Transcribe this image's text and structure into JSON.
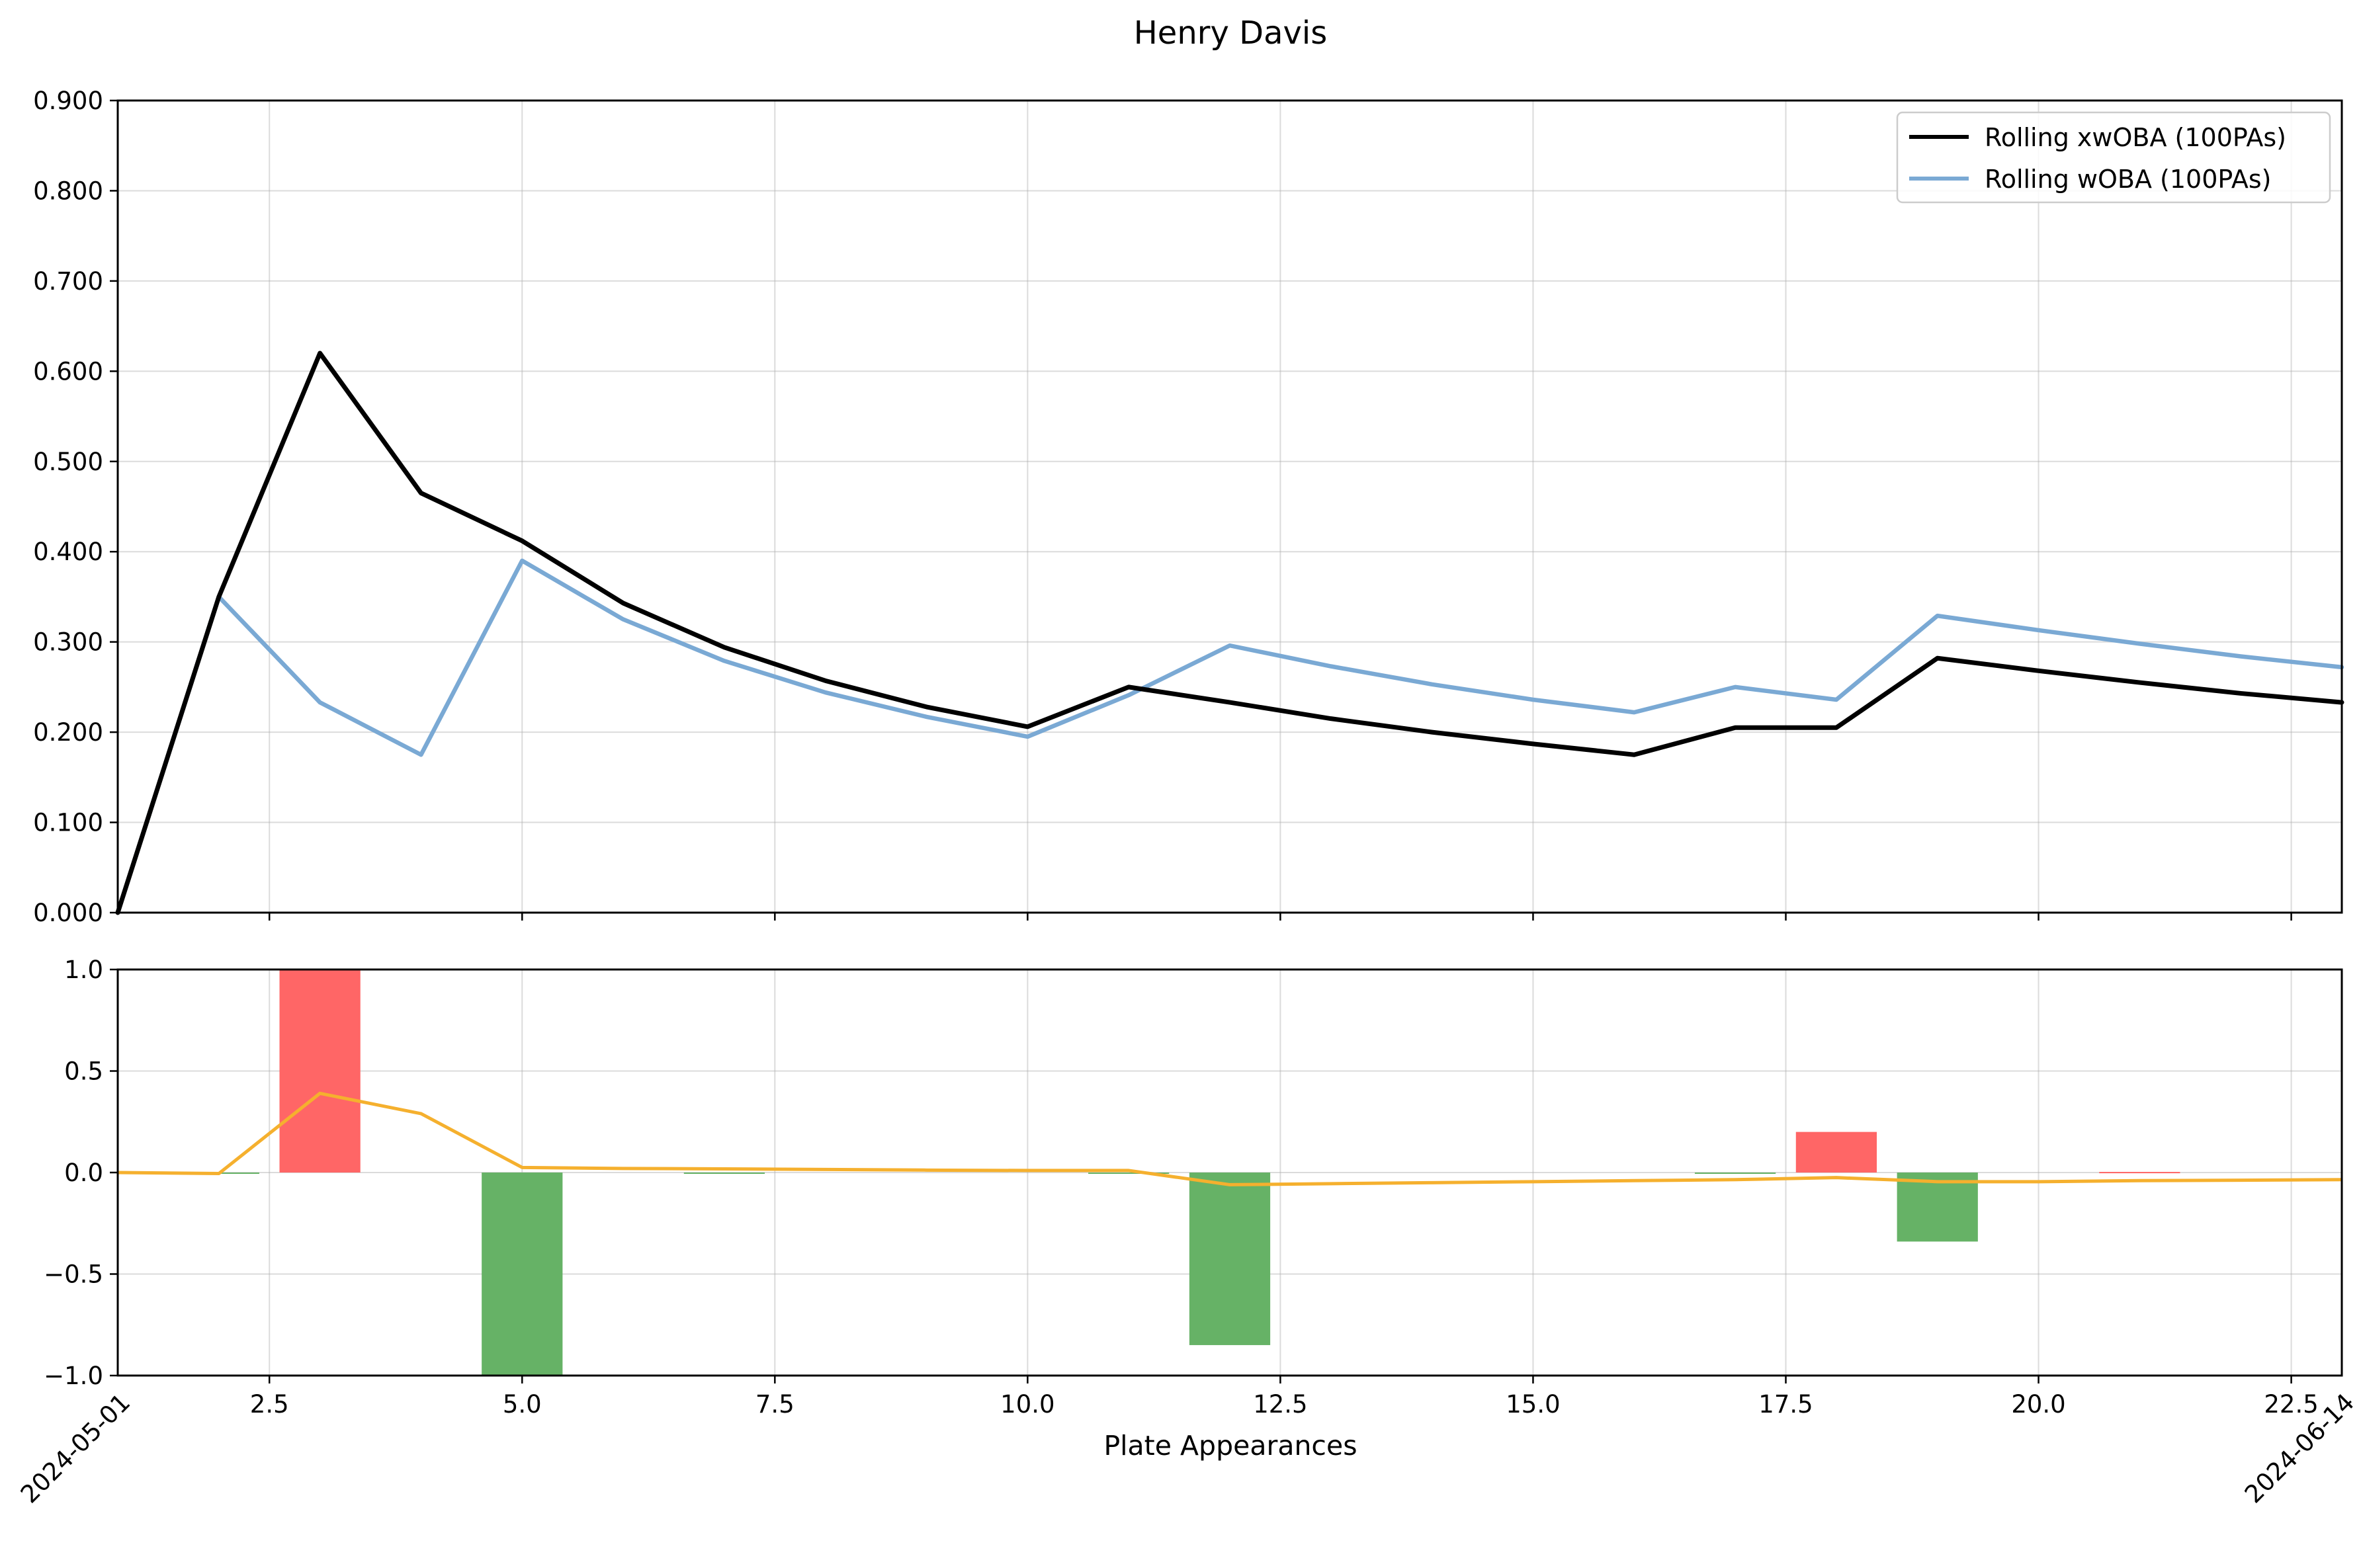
{
  "chart_data": {
    "type": "line",
    "title": "Henry Davis",
    "xlabel": "Plate Appearances",
    "x_ticks": [
      "2.5",
      "5.0",
      "7.5",
      "10.0",
      "12.5",
      "15.0",
      "17.5",
      "20.0",
      "22.5"
    ],
    "x_date_labels": [
      {
        "x": 1,
        "label": "2024-05-01"
      },
      {
        "x": 23,
        "label": "2024-06-14"
      }
    ],
    "xlim": [
      1,
      23
    ],
    "grid": true,
    "legend_position": "top-right",
    "top_panel": {
      "type": "line",
      "ylim": [
        0,
        0.9
      ],
      "y_ticks": [
        "0.000",
        "0.100",
        "0.200",
        "0.300",
        "0.400",
        "0.500",
        "0.600",
        "0.700",
        "0.800",
        "0.900"
      ],
      "x": [
        1,
        2,
        3,
        4,
        5,
        6,
        7,
        8,
        9,
        10,
        11,
        12,
        13,
        14,
        15,
        16,
        17,
        18,
        19,
        20,
        21,
        22,
        23
      ],
      "series": [
        {
          "name": "Rolling xwOBA (100PAs)",
          "color": "#000000",
          "values": [
            0.0,
            0.35,
            0.62,
            0.465,
            0.412,
            0.343,
            0.294,
            0.257,
            0.228,
            0.206,
            0.25,
            0.233,
            0.215,
            0.2,
            0.187,
            0.175,
            0.205,
            0.205,
            0.282,
            0.268,
            0.255,
            0.243,
            0.233
          ]
        },
        {
          "name": "Rolling wOBA (100PAs)",
          "color": "#7aa9d4",
          "values": [
            0.0,
            0.35,
            0.233,
            0.175,
            0.39,
            0.325,
            0.279,
            0.244,
            0.217,
            0.195,
            0.241,
            0.296,
            0.273,
            0.253,
            0.236,
            0.222,
            0.25,
            0.236,
            0.329,
            0.313,
            0.298,
            0.284,
            0.272
          ]
        }
      ]
    },
    "bottom_panel": {
      "type": "bar",
      "ylim": [
        -1.0,
        1.0
      ],
      "y_ticks": [
        "1.0",
        "0.5",
        "0.0",
        "−0.5",
        "−1.0"
      ],
      "bars": {
        "x": [
          2,
          3,
          4,
          5,
          6,
          7,
          8,
          9,
          10,
          11,
          12,
          13,
          14,
          15,
          16,
          17,
          18,
          19,
          20,
          21,
          22,
          23
        ],
        "values": [
          -0.005,
          1.0,
          0.0,
          -1.0,
          0.0,
          -0.003,
          0.0,
          0.0,
          0.0,
          -0.005,
          -0.85,
          0.0,
          0.0,
          0.0,
          0.0,
          -0.005,
          0.2,
          -0.34,
          0.0,
          0.003,
          0.0,
          0.0
        ],
        "positive_color": "#ff6666",
        "negative_color": "#66b266"
      },
      "line": {
        "color": "#f5b02e",
        "x": [
          1,
          2,
          3,
          4,
          5,
          6,
          7,
          8,
          9,
          10,
          11,
          12,
          13,
          14,
          15,
          16,
          17,
          18,
          19,
          20,
          21,
          22,
          23
        ],
        "values": [
          0.0,
          -0.005,
          0.39,
          0.29,
          0.025,
          0.02,
          0.018,
          0.015,
          0.012,
          0.01,
          0.01,
          -0.06,
          -0.055,
          -0.05,
          -0.045,
          -0.04,
          -0.035,
          -0.025,
          -0.045,
          -0.045,
          -0.04,
          -0.038,
          -0.035
        ]
      }
    }
  }
}
